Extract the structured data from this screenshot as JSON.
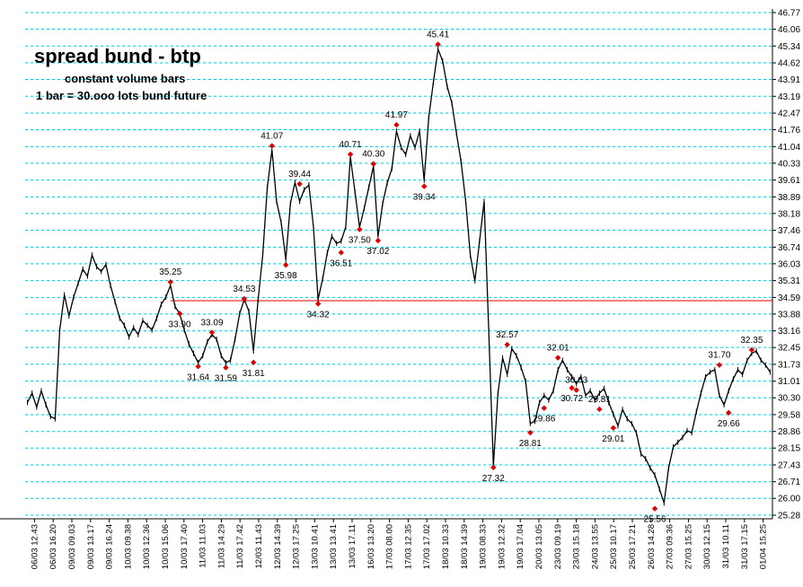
{
  "chart_data": {
    "type": "line",
    "title": "spread bund - btp",
    "subtitle_lines": [
      "constant volume bars",
      "1 bar = 30.ooo lots bund future"
    ],
    "xlabel": "",
    "ylabel": "",
    "ylim": [
      25.28,
      46.77
    ],
    "grid": true,
    "legend": "none",
    "colors": {
      "price": "#000000",
      "grid": "#00c8d8",
      "marker": "#dd0000",
      "reference_line": "#dd0000"
    },
    "y_ticks": [
      "46.77",
      "46.06",
      "45.34",
      "44.62",
      "43.91",
      "43.19",
      "42.47",
      "41.76",
      "41.04",
      "40.33",
      "39.61",
      "38.89",
      "38.18",
      "37.46",
      "36.74",
      "36.03",
      "35.31",
      "34.59",
      "33.88",
      "33.16",
      "32.45",
      "31.73",
      "31.01",
      "30.30",
      "29.58",
      "28.86",
      "28.15",
      "27.43",
      "26.71",
      "26.00",
      "25.28"
    ],
    "x_ticks": [
      "06/03 12.43",
      "06/03 16.20",
      "09/03 09.03",
      "09/03 13.17",
      "09/03 16.24",
      "10/03 09.38",
      "10/03 12.36",
      "10/03 15.06",
      "10/03 17.40",
      "11/03 11.03",
      "11/03 14.29",
      "11/03 17.42",
      "12/03 11.43",
      "12/03 14.39",
      "12/03 17.25",
      "13/03 10.41",
      "13/03 13.41",
      "13/03 17.11",
      "16/03 13.20",
      "17/03 08.00",
      "17/03 12.35",
      "17/03 17.02",
      "18/03 10.33",
      "18/03 14.39",
      "19/03 08.33",
      "19/03 12.32",
      "19/03 17.04",
      "20/03 13.05",
      "23/03 09.19",
      "23/03 15.18",
      "24/03 13.55",
      "25/03 10.17",
      "25/03 17.21",
      "26/03 14.28",
      "27/03 09.36",
      "27/03 15.25",
      "30/03 12.15",
      "31/03 10.11",
      "31/03 17.15",
      "01/04 15.25"
    ],
    "reference_line": 34.45,
    "series": [
      {
        "values": [
          30.1,
          30.5,
          29.9,
          30.6,
          30.0,
          29.5,
          29.4,
          33.2,
          34.7,
          33.8,
          34.6,
          35.2,
          35.8,
          35.5,
          36.4,
          35.9,
          35.7,
          36.0,
          35.1,
          34.4,
          33.7,
          33.4,
          32.9,
          33.3,
          33.0,
          33.6,
          33.4,
          33.2,
          33.7,
          34.3,
          34.6,
          35.1,
          34.2,
          33.9,
          33.2,
          32.6,
          32.2,
          31.8,
          32.1,
          32.7,
          33.0,
          32.8,
          32.1,
          31.8,
          31.9,
          32.8,
          33.9,
          34.5,
          34.0,
          32.3,
          34.5,
          36.4,
          39.3,
          40.9,
          38.7,
          37.8,
          36.2,
          38.6,
          39.5,
          38.7,
          39.2,
          39.4,
          37.6,
          34.5,
          35.4,
          36.5,
          37.2,
          36.9,
          37.0,
          37.6,
          40.6,
          39.1,
          37.6,
          38.4,
          39.3,
          40.2,
          37.2,
          38.6,
          39.5,
          40.1,
          41.7,
          41.0,
          40.7,
          41.5,
          41.0,
          41.7,
          39.6,
          42.3,
          43.8,
          45.2,
          44.7,
          43.6,
          42.9,
          41.6,
          40.4,
          38.7,
          36.4,
          35.3,
          37.0,
          38.7,
          33.2,
          27.4,
          30.5,
          32.0,
          31.3,
          32.4,
          32.1,
          31.6,
          31.0,
          29.2,
          29.3,
          30.1,
          30.4,
          30.2,
          30.6,
          31.5,
          31.9,
          31.5,
          31.2,
          30.9,
          31.2,
          30.4,
          30.6,
          30.2,
          30.5,
          30.7,
          30.1,
          29.6,
          29.1,
          29.8,
          29.4,
          29.2,
          28.8,
          27.9,
          27.7,
          27.3,
          27.0,
          26.4,
          25.8,
          27.3,
          28.2,
          28.4,
          28.6,
          28.9,
          28.8,
          29.7,
          30.5,
          31.2,
          31.4,
          31.5,
          30.4,
          30.0,
          30.6,
          31.1,
          31.5,
          31.3,
          31.9,
          32.2,
          32.3,
          31.9,
          31.7,
          31.4
        ]
      }
    ],
    "annotations": [
      {
        "index": 31,
        "value": 35.25,
        "text": "35.25",
        "kind": "high"
      },
      {
        "index": 33,
        "value": 33.9,
        "text": "33.90",
        "kind": "low"
      },
      {
        "index": 37,
        "value": 31.64,
        "text": "31.64",
        "kind": "low"
      },
      {
        "index": 40,
        "value": 33.09,
        "text": "33.09",
        "kind": "high"
      },
      {
        "index": 43,
        "value": 31.59,
        "text": "31.59",
        "kind": "low"
      },
      {
        "index": 47,
        "value": 34.53,
        "text": "34.53",
        "kind": "high"
      },
      {
        "index": 49,
        "value": 31.81,
        "text": "31.81",
        "kind": "low"
      },
      {
        "index": 53,
        "value": 41.07,
        "text": "41.07",
        "kind": "high"
      },
      {
        "index": 56,
        "value": 35.98,
        "text": "35.98",
        "kind": "low"
      },
      {
        "index": 59,
        "value": 39.44,
        "text": "39.44",
        "kind": "high"
      },
      {
        "index": 63,
        "value": 34.32,
        "text": "34.32",
        "kind": "low"
      },
      {
        "index": 68,
        "value": 36.51,
        "text": "36.51",
        "kind": "low"
      },
      {
        "index": 70,
        "value": 40.71,
        "text": "40.71",
        "kind": "high"
      },
      {
        "index": 72,
        "value": 37.5,
        "text": "37.50",
        "kind": "low"
      },
      {
        "index": 75,
        "value": 40.3,
        "text": "40.30",
        "kind": "high"
      },
      {
        "index": 76,
        "value": 37.02,
        "text": "37.02",
        "kind": "low"
      },
      {
        "index": 80,
        "value": 41.97,
        "text": "41.97",
        "kind": "high"
      },
      {
        "index": 86,
        "value": 39.34,
        "text": "39.34",
        "kind": "low"
      },
      {
        "index": 89,
        "value": 45.41,
        "text": "45.41",
        "kind": "high"
      },
      {
        "index": 101,
        "value": 27.32,
        "text": "27.32",
        "kind": "low"
      },
      {
        "index": 104,
        "value": 32.57,
        "text": "32.57",
        "kind": "high"
      },
      {
        "index": 109,
        "value": 28.81,
        "text": "28.81",
        "kind": "low"
      },
      {
        "index": 112,
        "value": 29.86,
        "text": "29.86",
        "kind": "low"
      },
      {
        "index": 115,
        "value": 32.01,
        "text": "32.01",
        "kind": "high"
      },
      {
        "index": 118,
        "value": 30.72,
        "text": "30.72",
        "kind": "low"
      },
      {
        "index": 119,
        "value": 30.63,
        "text": "30.63",
        "kind": "high"
      },
      {
        "index": 124,
        "value": 29.81,
        "text": "29.81",
        "kind": "high"
      },
      {
        "index": 127,
        "value": 29.01,
        "text": "29.01",
        "kind": "low"
      },
      {
        "index": 136,
        "value": 25.56,
        "text": "25.56",
        "kind": "low"
      },
      {
        "index": 150,
        "value": 31.7,
        "text": "31.70",
        "kind": "high"
      },
      {
        "index": 152,
        "value": 29.66,
        "text": "29.66",
        "kind": "low"
      },
      {
        "index": 157,
        "value": 32.35,
        "text": "32.35",
        "kind": "high"
      }
    ]
  }
}
